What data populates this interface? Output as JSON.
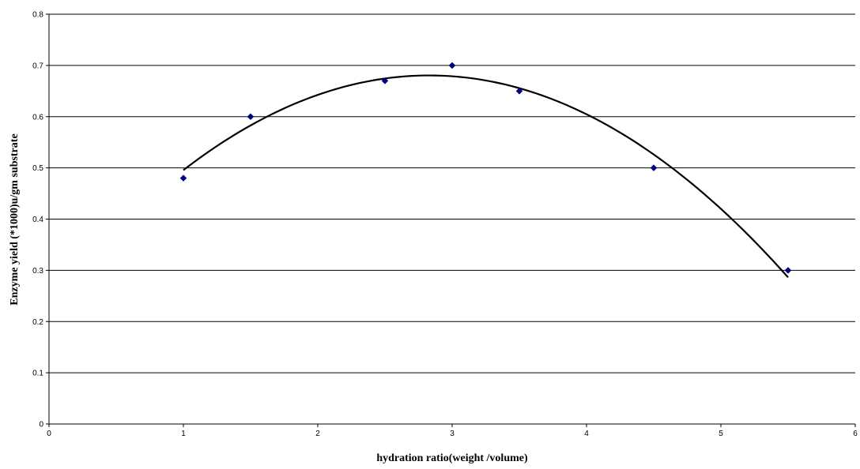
{
  "chart_data": {
    "type": "scatter",
    "title": "",
    "xlabel": "hydration ratio(weight /volume)",
    "ylabel": "Enzyme yield (*1000)u/gm substrate",
    "xlim": [
      0,
      6
    ],
    "ylim": [
      0,
      0.8
    ],
    "x_ticks": [
      "0",
      "1",
      "2",
      "3",
      "4",
      "5",
      "6"
    ],
    "y_ticks": [
      "0",
      "0.1",
      "0.2",
      "0.3",
      "0.4",
      "0.5",
      "0.6",
      "0.7",
      "0.8"
    ],
    "grid": "horizontal",
    "legend": "none",
    "series": [
      {
        "x": [
          1,
          1.5,
          2.5,
          3,
          3.5,
          4.5,
          5.5
        ],
        "y": [
          0.48,
          0.6,
          0.67,
          0.7,
          0.65,
          0.5,
          0.3
        ],
        "marker": "diamond",
        "color": "#000080"
      }
    ],
    "trendline": {
      "type": "polynomial",
      "order": 2,
      "x_range": [
        1,
        5.5
      ],
      "color": "#000000"
    }
  }
}
